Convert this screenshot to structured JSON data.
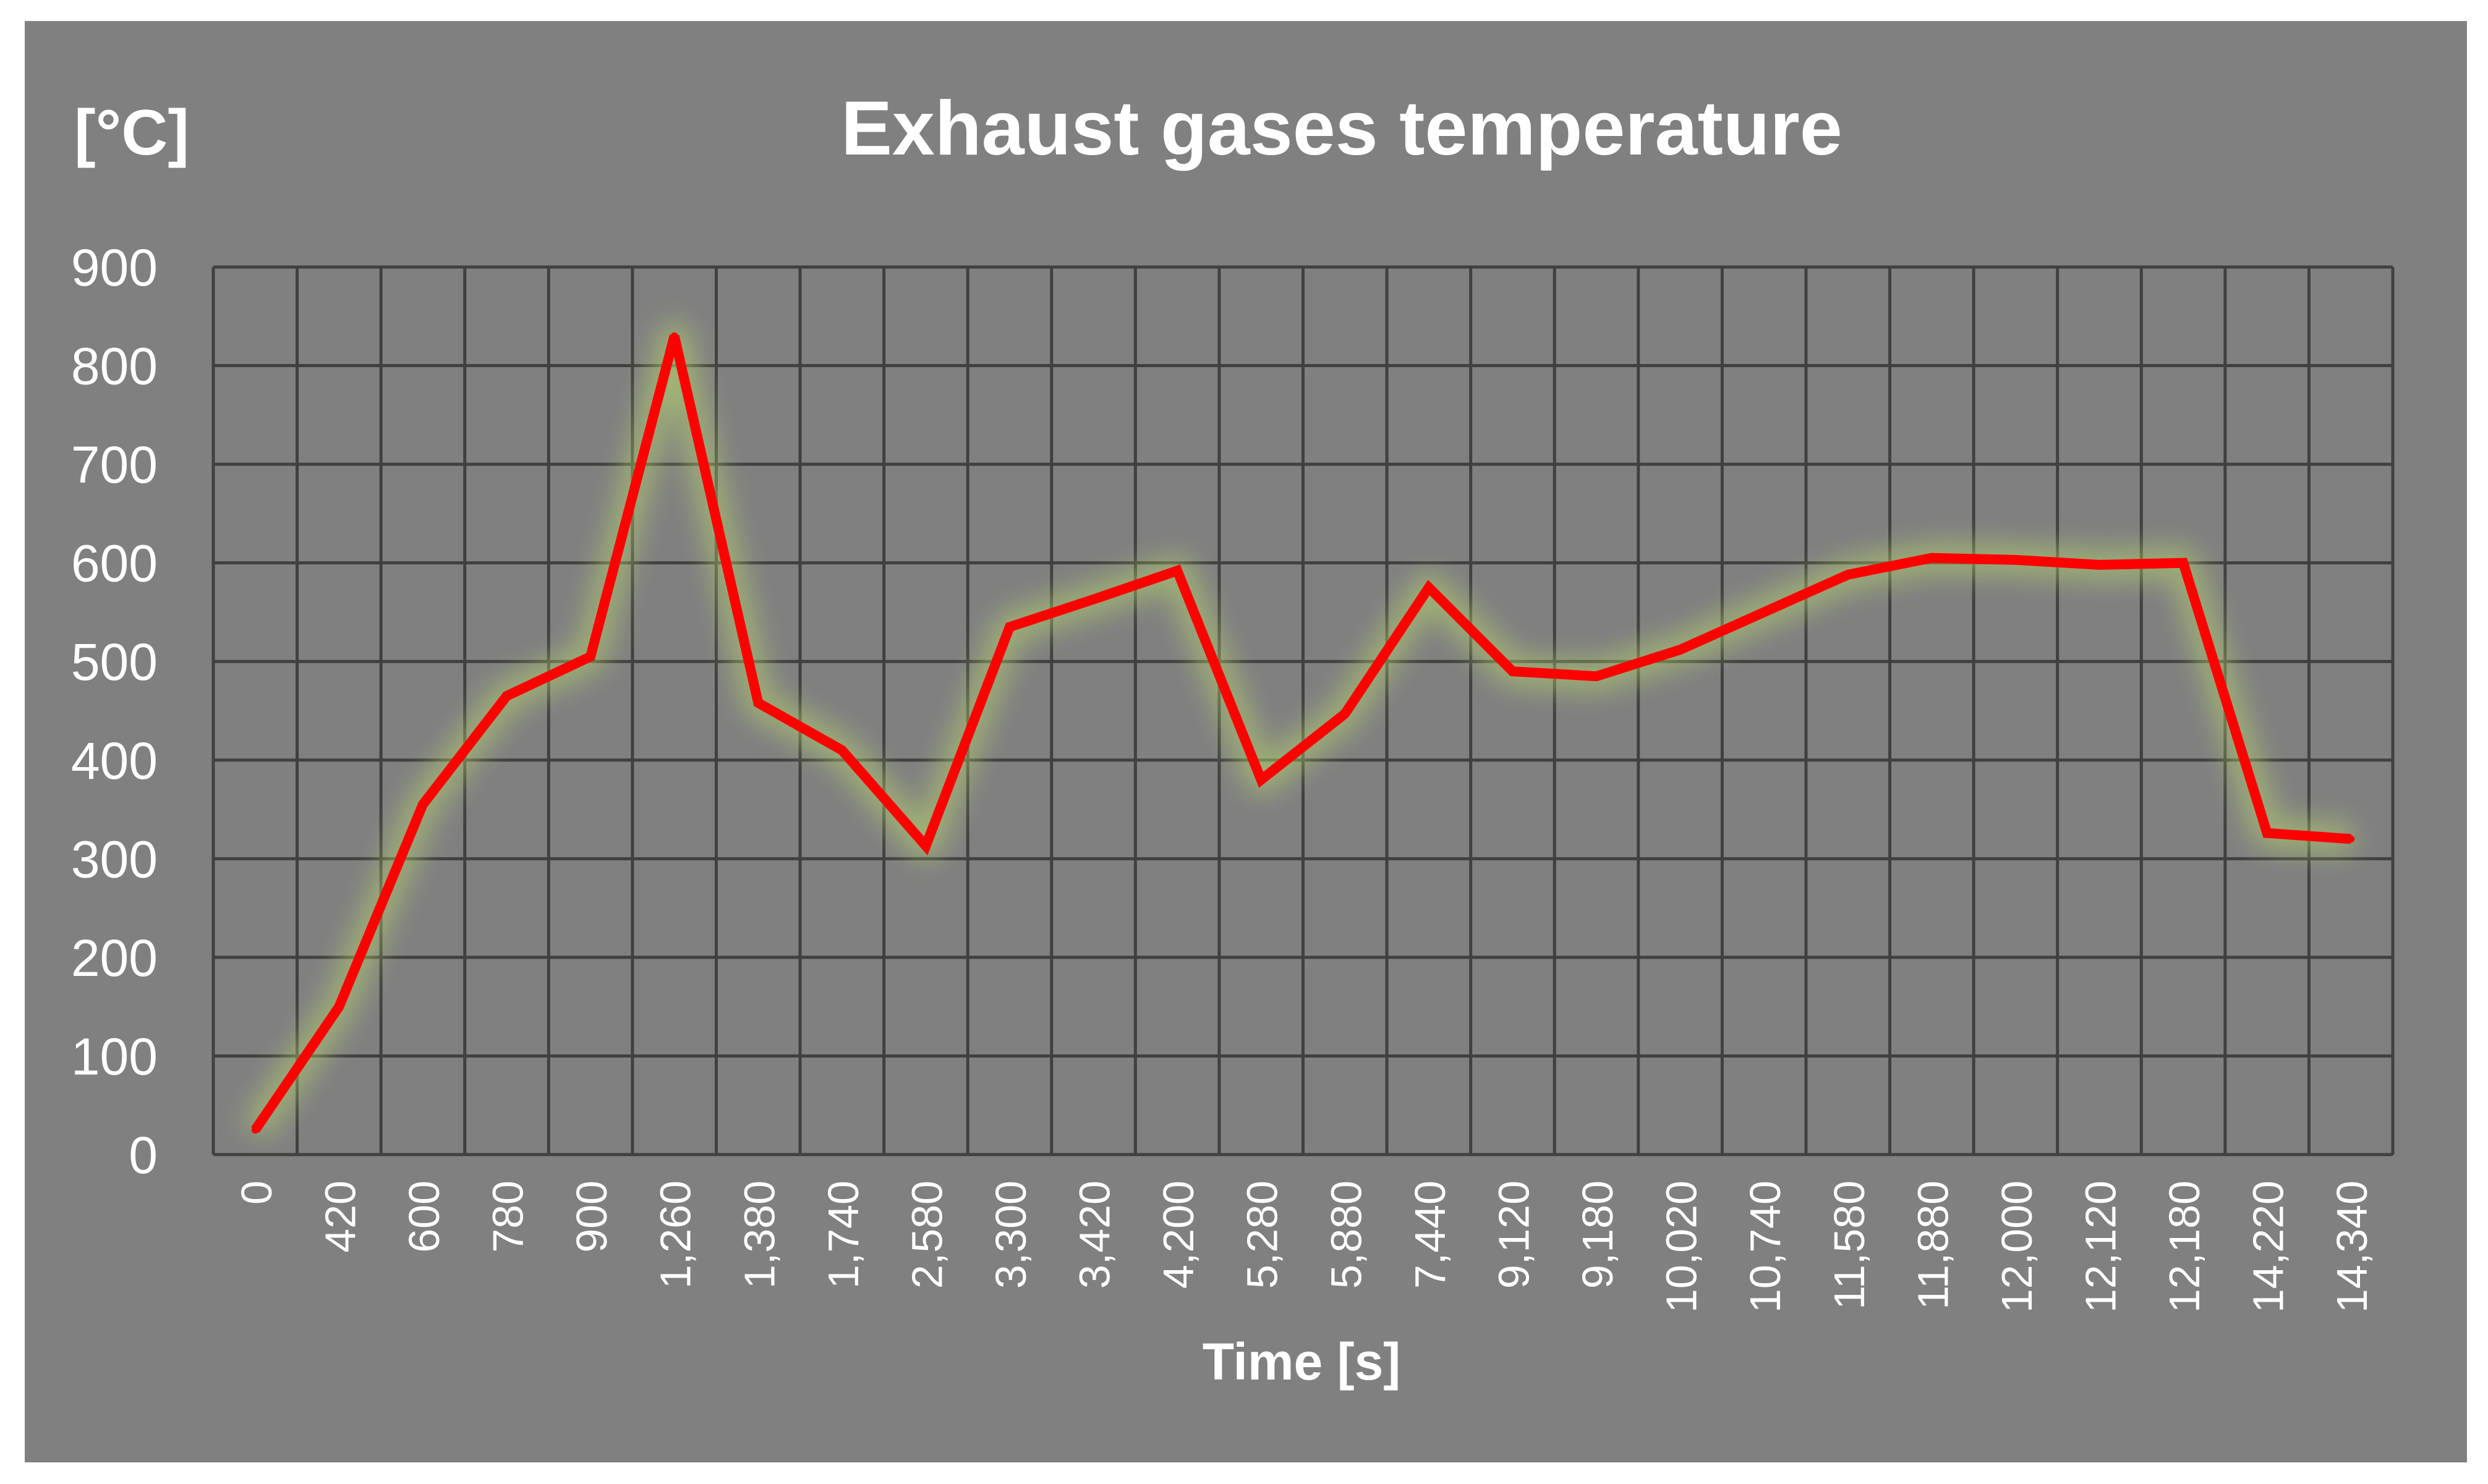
{
  "chart_data": {
    "type": "line",
    "title": "Exhaust gases temperature",
    "ylabel": "[°C]",
    "xlabel": "Time [s]",
    "ylim": [
      0,
      900
    ],
    "yticks": [
      0,
      100,
      200,
      300,
      400,
      500,
      600,
      700,
      800,
      900
    ],
    "grid": true,
    "legend": "none",
    "categories": [
      "0",
      "420",
      "600",
      "780",
      "900",
      "1,260",
      "1,380",
      "1,740",
      "2,580",
      "3,300",
      "3,420",
      "4,200",
      "5,280",
      "5,880",
      "7,440",
      "9,120",
      "9,180",
      "10,020",
      "10,740",
      "11,580",
      "11,880",
      "12,000",
      "12,120",
      "12,180",
      "14,220",
      "14,340"
    ],
    "series": [
      {
        "values": [
          25,
          150,
          355,
          465,
          505,
          830,
          458,
          410,
          313,
          535,
          563,
          592,
          380,
          447,
          575,
          490,
          485,
          512,
          550,
          588,
          605,
          603,
          598,
          600,
          326,
          320
        ]
      }
    ],
    "colors": {
      "background": "#808080",
      "frame": "#ffffff",
      "grid": "#404040",
      "line": "#ff0000",
      "glow": "#b8d96b",
      "text": "#ffffff"
    }
  }
}
